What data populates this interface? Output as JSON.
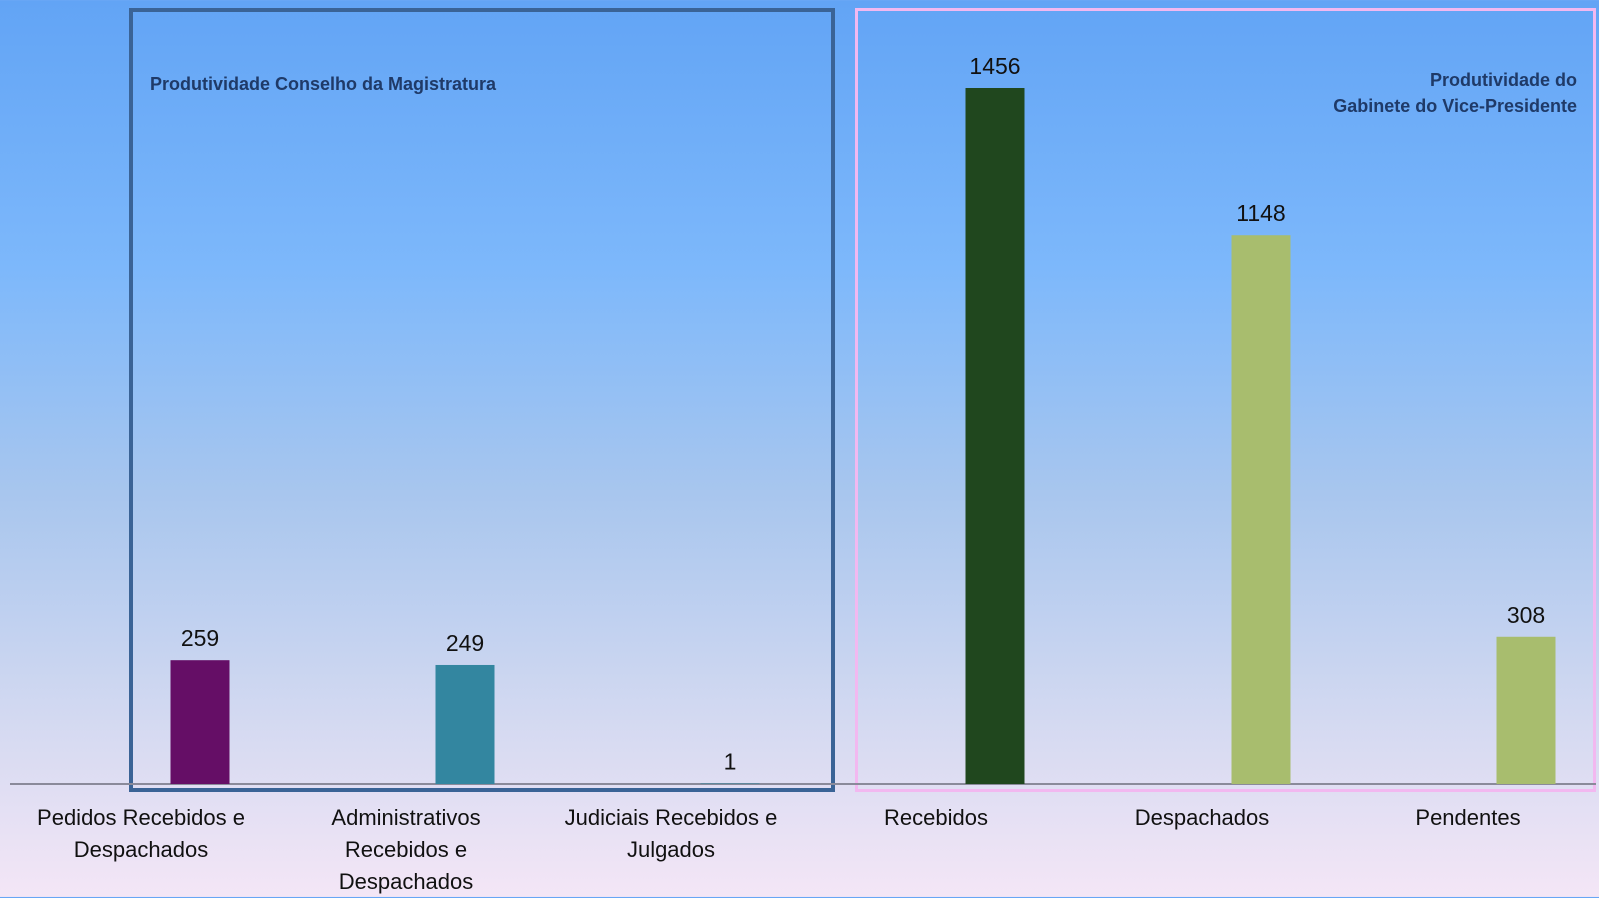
{
  "chart_data": [
    {
      "type": "bar",
      "title": "Produtividade Conselho da Magistratura",
      "categories": [
        "Pedidos Recebidos e Despachados",
        "Administrativos Recebidos e Despachados",
        "Judiciais Recebidos e Julgados"
      ],
      "values": [
        259,
        249,
        1
      ],
      "colors": [
        "#650e66",
        "#3386a0",
        "#3386a0"
      ]
    },
    {
      "type": "bar",
      "title_lines": [
        "Produtividade do",
        "Gabinete do Vice-Presidente"
      ],
      "categories": [
        "Recebidos",
        "Despachados",
        "Pendentes"
      ],
      "values": [
        1456,
        1148,
        308
      ],
      "colors": [
        "#20471e",
        "#a8bd6e",
        "#a8bd6e"
      ]
    }
  ]
}
